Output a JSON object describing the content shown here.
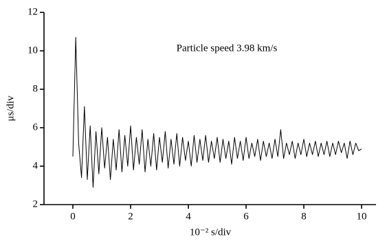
{
  "chart_data": {
    "type": "line",
    "annotation": "Particle speed 3.98 km/s",
    "x_label": "10⁻² s/div",
    "y_label": "μs/div",
    "xlim": [
      -1,
      10.5
    ],
    "ylim": [
      2,
      12
    ],
    "xticks": [
      0,
      2,
      4,
      6,
      8,
      10
    ],
    "yticks": [
      2,
      4,
      6,
      8,
      10,
      12
    ],
    "grid": false,
    "x": [
      0,
      0.1,
      0.2,
      0.3,
      0.4,
      0.5,
      0.6,
      0.7,
      0.8,
      0.9,
      1,
      1.1,
      1.2,
      1.3,
      1.4,
      1.5,
      1.6,
      1.7,
      1.8,
      1.9,
      2,
      2.1,
      2.2,
      2.3,
      2.4,
      2.5,
      2.6,
      2.7,
      2.8,
      2.9,
      3,
      3.1,
      3.2,
      3.3,
      3.4,
      3.5,
      3.6,
      3.7,
      3.8,
      3.9,
      4,
      4.1,
      4.2,
      4.3,
      4.4,
      4.5,
      4.6,
      4.7,
      4.8,
      4.9,
      5,
      5.1,
      5.2,
      5.3,
      5.4,
      5.5,
      5.6,
      5.7,
      5.8,
      5.9,
      6,
      6.1,
      6.2,
      6.3,
      6.4,
      6.5,
      6.6,
      6.7,
      6.8,
      6.9,
      7,
      7.1,
      7.2,
      7.3,
      7.4,
      7.5,
      7.6,
      7.7,
      7.8,
      7.9,
      8,
      8.1,
      8.2,
      8.3,
      8.4,
      8.5,
      8.6,
      8.7,
      8.8,
      8.9,
      9,
      9.1,
      9.2,
      9.3,
      9.4,
      9.5,
      9.6,
      9.7,
      9.8,
      9.9,
      10
    ],
    "series": [
      {
        "color": "#000000",
        "values": [
          4.5,
          10.7,
          5.2,
          3.4,
          7.1,
          3.3,
          6.1,
          2.9,
          5.8,
          3.6,
          6.0,
          3.9,
          5.5,
          3.3,
          5.4,
          3.8,
          5.9,
          3.7,
          5.6,
          4.0,
          6.1,
          3.8,
          5.5,
          4.1,
          5.9,
          3.7,
          5.4,
          4.0,
          5.7,
          3.8,
          5.5,
          4.2,
          5.8,
          3.9,
          5.4,
          4.1,
          5.7,
          4.0,
          5.5,
          4.3,
          5.3,
          4.0,
          5.6,
          4.2,
          5.4,
          4.3,
          5.6,
          4.2,
          5.3,
          4.4,
          5.5,
          4.2,
          5.4,
          4.4,
          5.3,
          4.1,
          5.5,
          4.4,
          5.3,
          4.3,
          5.5,
          4.4,
          5.2,
          4.5,
          5.4,
          4.3,
          5.3,
          4.5,
          5.2,
          4.4,
          5.4,
          4.5,
          5.9,
          4.4,
          5.2,
          4.6,
          5.3,
          4.4,
          5.2,
          4.6,
          5.4,
          4.5,
          5.2,
          4.6,
          5.3,
          4.5,
          5.2,
          4.6,
          5.3,
          4.5,
          5.2,
          4.6,
          5.3,
          4.7,
          5.2,
          4.4,
          5.3,
          4.6,
          5.2,
          4.8,
          4.9
        ]
      }
    ]
  }
}
